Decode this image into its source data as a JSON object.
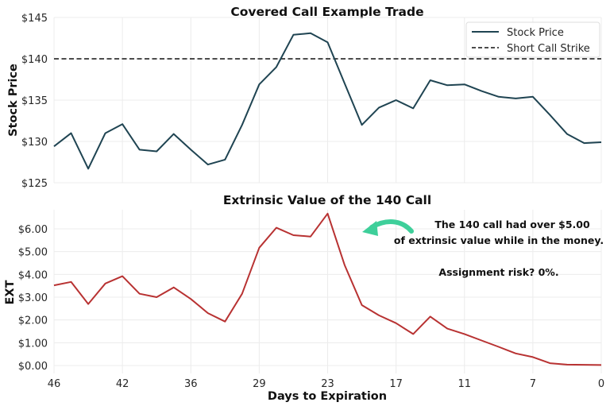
{
  "chart_data": [
    {
      "type": "line",
      "title": "Covered Call Example Trade",
      "ylabel": "Stock Price",
      "xlabel": "",
      "ylim": [
        125,
        145
      ],
      "yticks": [
        "$125",
        "$130",
        "$135",
        "$140",
        "$145"
      ],
      "ytick_values": [
        125,
        130,
        135,
        140,
        145
      ],
      "x": [
        46,
        45,
        44,
        43,
        42,
        41,
        40,
        39,
        36,
        35,
        34,
        33,
        29,
        28,
        27,
        26,
        23,
        22,
        21,
        20,
        17,
        16,
        15,
        14,
        11,
        10,
        9,
        8,
        7,
        6,
        5,
        4,
        0
      ],
      "grid": true,
      "legend_placement": "top-right",
      "series": [
        {
          "name": "Stock Price",
          "color": "#1f4452",
          "style": "solid",
          "values": [
            129.4,
            131.0,
            126.7,
            131.0,
            132.1,
            129.0,
            128.8,
            130.9,
            129.0,
            127.2,
            127.8,
            132.0,
            136.9,
            139.0,
            142.9,
            143.1,
            142.0,
            137.0,
            132.0,
            134.1,
            135.0,
            134.0,
            137.4,
            136.8,
            136.9,
            136.1,
            135.4,
            135.2,
            135.4,
            133.2,
            130.9,
            129.8,
            129.9
          ]
        },
        {
          "name": "Short Call Strike",
          "color": "#111111",
          "style": "dashed",
          "constant": 140
        }
      ]
    },
    {
      "type": "line",
      "title": "Extrinsic Value of the 140 Call",
      "ylabel": "EXT",
      "xlabel": "Days to Expiration",
      "ylim": [
        -0.3,
        6.9
      ],
      "yticks": [
        "$0.00",
        "$1.00",
        "$2.00",
        "$3.00",
        "$4.00",
        "$5.00",
        "$6.00"
      ],
      "ytick_values": [
        0,
        1,
        2,
        3,
        4,
        5,
        6
      ],
      "xticks": [
        "46",
        "42",
        "36",
        "29",
        "23",
        "17",
        "11",
        "7",
        "0"
      ],
      "grid": true,
      "series": [
        {
          "color": "#b83232",
          "values": [
            3.52,
            3.67,
            2.7,
            3.6,
            3.92,
            3.15,
            3.0,
            3.43,
            2.92,
            2.3,
            1.93,
            3.15,
            5.17,
            6.05,
            5.72,
            5.66,
            6.67,
            4.4,
            2.65,
            2.2,
            1.86,
            1.38,
            2.15,
            1.62,
            1.38,
            1.1,
            0.82,
            0.53,
            0.37,
            0.1,
            0.04,
            0.03,
            0.02
          ]
        }
      ],
      "annotations": {
        "line1": "The 140 call had over $5.00",
        "line2": "of extrinsic value while in the money.",
        "line3": "Assignment risk? 0%.",
        "arrow_color": "#3ecf9a"
      }
    }
  ]
}
